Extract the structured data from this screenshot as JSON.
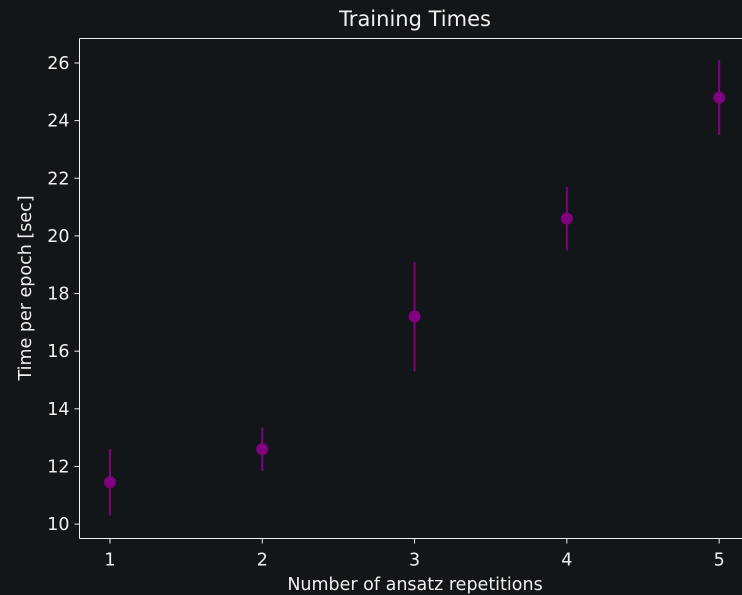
{
  "chart_data": {
    "type": "scatter",
    "title": "Training Times",
    "xlabel": "Number of ansatz repetitions",
    "ylabel": "Time per epoch [sec]",
    "xlim": [
      0.8,
      5.15
    ],
    "ylim": [
      9.5,
      26.85
    ],
    "x_ticks": [
      1,
      2,
      3,
      4,
      5
    ],
    "y_ticks": [
      10,
      12,
      14,
      16,
      18,
      20,
      22,
      24,
      26
    ],
    "grid": false,
    "legend": "none",
    "series": [
      {
        "color": "#800080",
        "x": [
          1,
          2,
          3,
          4,
          5
        ],
        "y": [
          11.45,
          12.6,
          17.2,
          20.6,
          24.8
        ],
        "error": [
          1.15,
          0.75,
          1.9,
          1.1,
          1.3
        ]
      }
    ]
  },
  "colors": {
    "background": "#131619",
    "foreground": "#f0f0f0",
    "marker": "#800080"
  }
}
